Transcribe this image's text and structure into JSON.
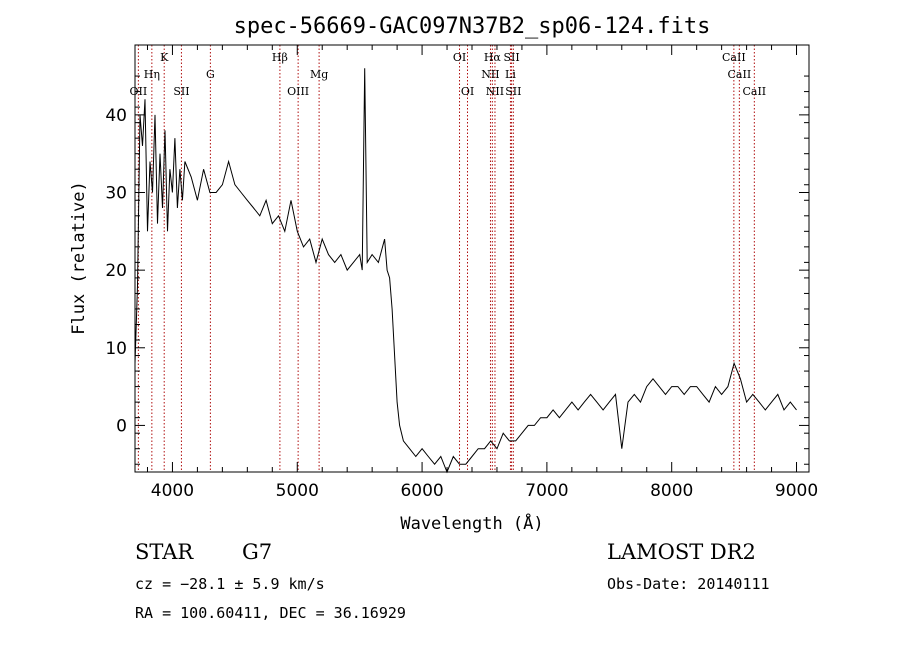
{
  "chart_data": {
    "type": "line",
    "title": "spec-56669-GAC097N37B2_sp06-124.fits",
    "xlabel": "Wavelength (Å)",
    "ylabel": "Flux (relative)",
    "xlim": [
      3700,
      9100
    ],
    "ylim": [
      -6,
      49
    ],
    "xticks": [
      4000,
      5000,
      6000,
      7000,
      8000,
      9000
    ],
    "yticks": [
      0,
      10,
      20,
      30,
      40
    ],
    "grid": false,
    "series": [
      {
        "x": [
          3700,
          3720,
          3740,
          3760,
          3780,
          3800,
          3820,
          3840,
          3860,
          3880,
          3900,
          3920,
          3940,
          3960,
          3980,
          4000,
          4020,
          4040,
          4060,
          4080,
          4100,
          4150,
          4200,
          4250,
          4300,
          4350,
          4400,
          4450,
          4500,
          4550,
          4600,
          4650,
          4700,
          4750,
          4800,
          4850,
          4900,
          4950,
          5000,
          5050,
          5100,
          5150,
          5200,
          5250,
          5300,
          5350,
          5400,
          5450,
          5500,
          5520,
          5540,
          5560,
          5600,
          5650,
          5700,
          5720,
          5740,
          5760,
          5780,
          5800,
          5820,
          5850,
          5900,
          5950,
          6000,
          6050,
          6100,
          6150,
          6200,
          6250,
          6300,
          6350,
          6400,
          6450,
          6500,
          6550,
          6600,
          6650,
          6700,
          6750,
          6800,
          6850,
          6900,
          6950,
          7000,
          7050,
          7100,
          7150,
          7200,
          7250,
          7300,
          7350,
          7400,
          7450,
          7500,
          7550,
          7600,
          7650,
          7700,
          7750,
          7800,
          7850,
          7900,
          7950,
          8000,
          8050,
          8100,
          8150,
          8200,
          8250,
          8300,
          8350,
          8400,
          8450,
          8500,
          8550,
          8600,
          8650,
          8700,
          8750,
          8800,
          8850,
          8900,
          8950,
          9000
        ],
        "y": [
          8,
          18,
          40,
          36,
          42,
          25,
          34,
          30,
          40,
          26,
          35,
          28,
          38,
          25,
          33,
          30,
          37,
          28,
          33,
          29,
          34,
          32,
          29,
          33,
          30,
          30,
          31,
          34,
          31,
          30,
          29,
          28,
          27,
          29,
          26,
          27,
          25,
          29,
          25,
          23,
          24,
          21,
          24,
          22,
          21,
          22,
          20,
          21,
          22,
          20,
          46,
          21,
          22,
          21,
          24,
          20,
          19,
          15,
          9,
          3,
          0,
          -2,
          -3,
          -4,
          -3,
          -4,
          -5,
          -4,
          -6,
          -4,
          -5,
          -5,
          -4,
          -3,
          -3,
          -2,
          -3,
          -1,
          -2,
          -2,
          -1,
          0,
          0,
          1,
          1,
          2,
          1,
          2,
          3,
          2,
          3,
          4,
          3,
          2,
          3,
          4,
          -3,
          3,
          4,
          3,
          5,
          6,
          5,
          4,
          5,
          5,
          4,
          5,
          5,
          4,
          3,
          5,
          4,
          5,
          8,
          6,
          3,
          4,
          3,
          2,
          3,
          4,
          2,
          3,
          2
        ]
      }
    ],
    "line_markers": [
      {
        "label": "OII",
        "x": 3727
      },
      {
        "label": "Hη",
        "x": 3835
      },
      {
        "label": "K",
        "x": 3934
      },
      {
        "label": "SII",
        "x": 4072
      },
      {
        "label": "G",
        "x": 4304
      },
      {
        "label": "Hβ",
        "x": 4861
      },
      {
        "label": "OIII",
        "x": 5007
      },
      {
        "label": "Mg",
        "x": 5175
      },
      {
        "label": "OI",
        "x": 6300
      },
      {
        "label": "OI",
        "x": 6364
      },
      {
        "label": "Hα",
        "x": 6563
      },
      {
        "label": "NII",
        "x": 6548
      },
      {
        "label": "NII",
        "x": 6584
      },
      {
        "label": "SII",
        "x": 6717
      },
      {
        "label": "SII",
        "x": 6731
      },
      {
        "label": "Li",
        "x": 6708
      },
      {
        "label": "CaII",
        "x": 8498
      },
      {
        "label": "CaII",
        "x": 8542
      },
      {
        "label": "CaII",
        "x": 8662
      }
    ],
    "colors": {
      "spectrum": "#000000",
      "marker": "#b01010",
      "axes": "#000000"
    }
  },
  "info": {
    "object_class": "STAR",
    "subclass": "G7",
    "survey": "LAMOST DR2",
    "redshift": "cz = −28.1 ± 5.9 km/s",
    "obs_date": "Obs-Date: 20140111",
    "coords": "RA = 100.60411, DEC =  36.16929"
  }
}
